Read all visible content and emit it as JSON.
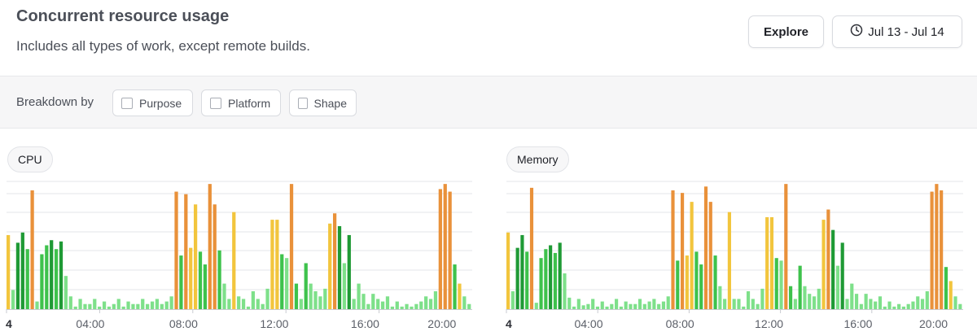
{
  "header": {
    "title": "Concurrent resource usage",
    "subtitle": "Includes all types of work, except remote builds.",
    "explore_label": "Explore",
    "date_range_label": "Jul 13 - Jul 14"
  },
  "toolbar": {
    "breakdown_label": "Breakdown by",
    "options": [
      {
        "label": "Purpose",
        "checked": false
      },
      {
        "label": "Platform",
        "checked": false
      },
      {
        "label": "Shape",
        "checked": false
      }
    ]
  },
  "colors": {
    "dark_green": "#1f9a35",
    "green": "#3ec24c",
    "light_green": "#7ee08a",
    "yellow": "#f2c53d",
    "orange": "#e9913a",
    "grid": "#e3e4e8",
    "axis": "#c9cbd1"
  },
  "chart_data": [
    {
      "type": "bar",
      "title": "CPU",
      "first_tick_label": "4",
      "x_tick_labels": [
        "04:00",
        "08:00",
        "12:00",
        "16:00",
        "20:00"
      ],
      "values": [
        58,
        15,
        52,
        60,
        47,
        93,
        6,
        43,
        50,
        54,
        47,
        53,
        26,
        10,
        2,
        8,
        4,
        4,
        8,
        2,
        6,
        2,
        4,
        8,
        2,
        6,
        4,
        4,
        8,
        4,
        6,
        8,
        4,
        6,
        10,
        92,
        42,
        90,
        48,
        82,
        45,
        35,
        98,
        82,
        46,
        20,
        8,
        76,
        10,
        8,
        2,
        14,
        8,
        4,
        16,
        70,
        70,
        43,
        40,
        98,
        20,
        8,
        36,
        20,
        14,
        10,
        16,
        67,
        75,
        65,
        36,
        58,
        8,
        20,
        12,
        4,
        12,
        8,
        6,
        10,
        2,
        6,
        2,
        4,
        2,
        4,
        6,
        10,
        8,
        14,
        94,
        98,
        92,
        35,
        20,
        10,
        4
      ],
      "colors": [
        "yellow",
        "light_green",
        "dark_green",
        "dark_green",
        "green",
        "orange",
        "light_green",
        "green",
        "green",
        "dark_green",
        "green",
        "dark_green",
        "light_green",
        "light_green",
        "light_green",
        "light_green",
        "light_green",
        "light_green",
        "light_green",
        "light_green",
        "light_green",
        "light_green",
        "light_green",
        "light_green",
        "light_green",
        "light_green",
        "light_green",
        "light_green",
        "light_green",
        "light_green",
        "light_green",
        "light_green",
        "light_green",
        "light_green",
        "light_green",
        "orange",
        "green",
        "orange",
        "yellow",
        "yellow",
        "green",
        "green",
        "orange",
        "orange",
        "green",
        "light_green",
        "light_green",
        "yellow",
        "light_green",
        "light_green",
        "light_green",
        "light_green",
        "light_green",
        "light_green",
        "light_green",
        "yellow",
        "yellow",
        "green",
        "light_green",
        "orange",
        "green",
        "light_green",
        "green",
        "light_green",
        "light_green",
        "light_green",
        "light_green",
        "yellow",
        "orange",
        "dark_green",
        "light_green",
        "dark_green",
        "light_green",
        "light_green",
        "light_green",
        "light_green",
        "light_green",
        "light_green",
        "light_green",
        "light_green",
        "light_green",
        "light_green",
        "light_green",
        "light_green",
        "light_green",
        "light_green",
        "light_green",
        "light_green",
        "light_green",
        "light_green",
        "orange",
        "orange",
        "orange",
        "green",
        "yellow",
        "light_green",
        "light_green"
      ]
    },
    {
      "type": "bar",
      "title": "Memory",
      "first_tick_label": "4",
      "x_tick_labels": [
        "04:00",
        "08:00",
        "12:00",
        "16:00",
        "20:00"
      ],
      "values": [
        60,
        14,
        48,
        58,
        45,
        95,
        5,
        40,
        47,
        50,
        44,
        52,
        28,
        9,
        2,
        8,
        3,
        4,
        8,
        2,
        6,
        2,
        4,
        8,
        2,
        6,
        4,
        4,
        8,
        4,
        6,
        8,
        4,
        6,
        10,
        93,
        38,
        91,
        42,
        84,
        45,
        35,
        96,
        84,
        42,
        18,
        8,
        76,
        8,
        8,
        2,
        14,
        8,
        4,
        16,
        72,
        72,
        40,
        38,
        98,
        18,
        8,
        34,
        18,
        12,
        10,
        16,
        70,
        78,
        62,
        34,
        52,
        8,
        20,
        12,
        4,
        12,
        8,
        6,
        10,
        2,
        6,
        2,
        4,
        2,
        4,
        6,
        10,
        8,
        14,
        92,
        98,
        93,
        33,
        22,
        10,
        4
      ],
      "colors": [
        "yellow",
        "light_green",
        "dark_green",
        "dark_green",
        "green",
        "orange",
        "light_green",
        "green",
        "green",
        "dark_green",
        "green",
        "dark_green",
        "light_green",
        "light_green",
        "light_green",
        "light_green",
        "light_green",
        "light_green",
        "light_green",
        "light_green",
        "light_green",
        "light_green",
        "light_green",
        "light_green",
        "light_green",
        "light_green",
        "light_green",
        "light_green",
        "light_green",
        "light_green",
        "light_green",
        "light_green",
        "light_green",
        "light_green",
        "light_green",
        "orange",
        "green",
        "orange",
        "yellow",
        "yellow",
        "green",
        "green",
        "orange",
        "orange",
        "green",
        "light_green",
        "light_green",
        "yellow",
        "light_green",
        "light_green",
        "light_green",
        "light_green",
        "light_green",
        "light_green",
        "light_green",
        "yellow",
        "yellow",
        "green",
        "light_green",
        "orange",
        "green",
        "light_green",
        "green",
        "light_green",
        "light_green",
        "light_green",
        "light_green",
        "yellow",
        "orange",
        "dark_green",
        "light_green",
        "dark_green",
        "light_green",
        "light_green",
        "light_green",
        "light_green",
        "light_green",
        "light_green",
        "light_green",
        "light_green",
        "light_green",
        "light_green",
        "light_green",
        "light_green",
        "light_green",
        "light_green",
        "light_green",
        "light_green",
        "light_green",
        "light_green",
        "orange",
        "orange",
        "orange",
        "green",
        "yellow",
        "light_green",
        "light_green"
      ]
    }
  ]
}
